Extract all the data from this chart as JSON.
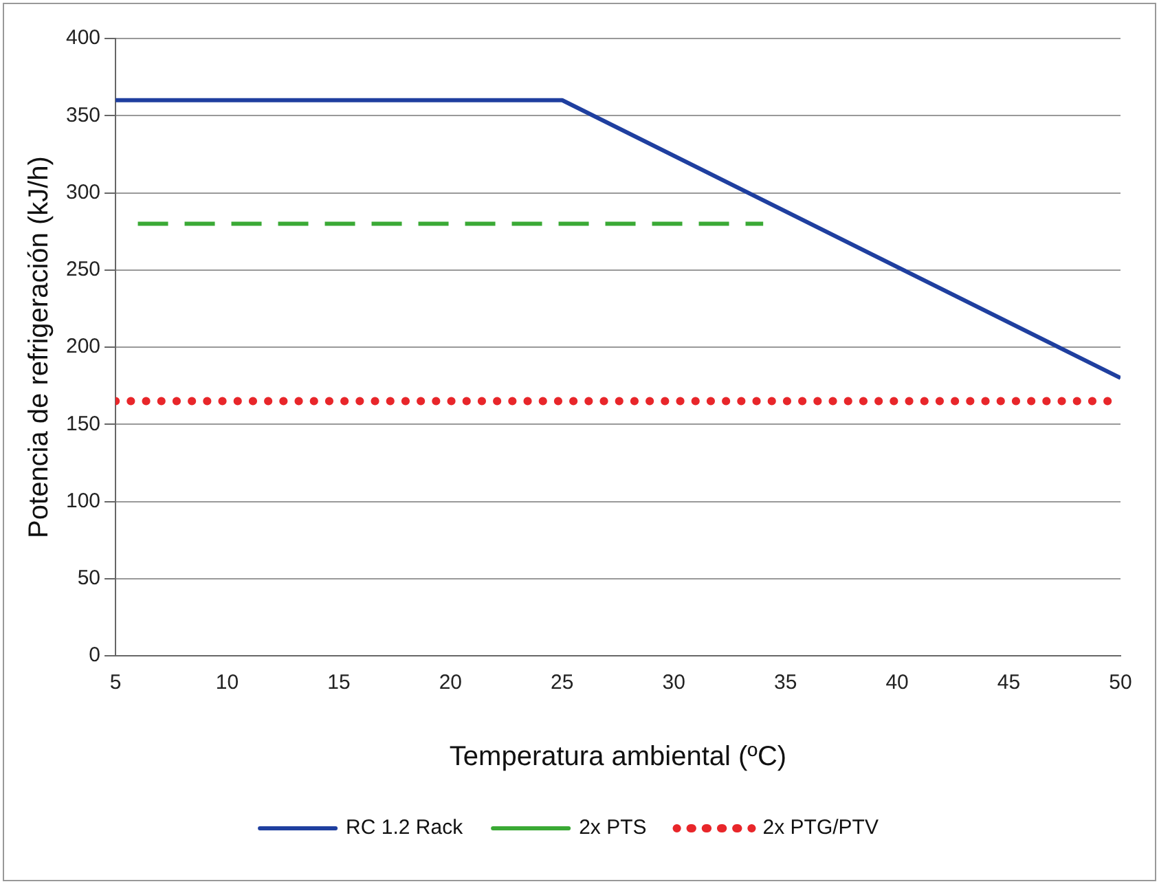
{
  "chart_data": {
    "type": "line",
    "xlabel": "Temperatura ambiental (ºC)",
    "ylabel": "Potencia de refrigeración (kJ/h)",
    "xlim": [
      5,
      50
    ],
    "xticks": [
      5,
      10,
      15,
      20,
      25,
      30,
      35,
      40,
      45,
      50
    ],
    "ylim": [
      0,
      400
    ],
    "yticks": [
      0,
      50,
      100,
      150,
      200,
      250,
      300,
      350,
      400
    ],
    "grid": "y",
    "legend": "bottom",
    "marker": "none",
    "series": [
      {
        "name": "RC 1.2 Rack",
        "color": "#1f3f9f",
        "x": [
          5,
          25,
          50
        ],
        "values": [
          360,
          360,
          180
        ],
        "line_style": "solid"
      },
      {
        "name": "2x PTS",
        "color": "#3aa935",
        "x": [
          6,
          34
        ],
        "values": [
          280,
          280
        ],
        "line_style": "dashed"
      },
      {
        "name": "2x PTG/PTV",
        "color": "#e8262a",
        "x": [
          5,
          50
        ],
        "values": [
          165,
          165
        ],
        "line_style": "dotted"
      }
    ]
  }
}
